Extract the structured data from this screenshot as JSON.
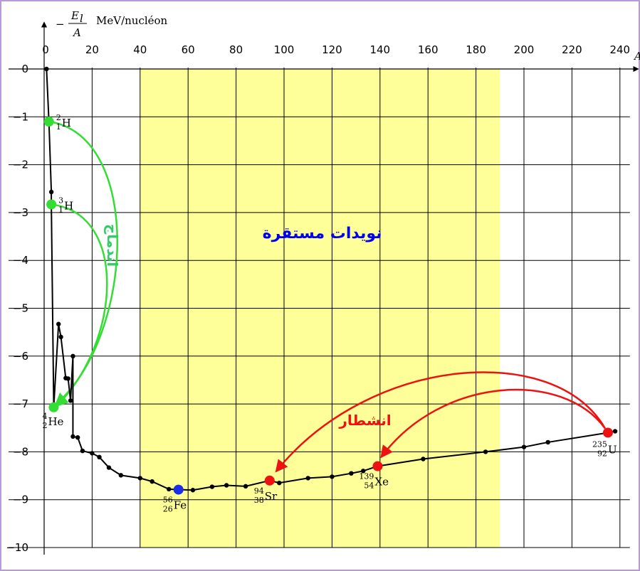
{
  "chart_data": {
    "type": "line",
    "xlabel": "A",
    "ylabel_num": "E",
    "ylabel_sub": "l",
    "ylabel_den": "A",
    "ylabel_minus": "−",
    "units": "MeV/nucléon",
    "xlim": [
      0,
      240
    ],
    "ylim": [
      -10,
      0
    ],
    "xticks": [
      20,
      40,
      60,
      80,
      100,
      120,
      140,
      160,
      180,
      200,
      220,
      240
    ],
    "yticks": [
      0,
      -1,
      -2,
      -3,
      -4,
      -5,
      -6,
      -7,
      -8,
      -9,
      -10
    ],
    "origin_tick_label": "0",
    "stable_region": {
      "x": [
        40,
        190
      ],
      "label": "نويدات مستقرة",
      "color": "#ffff99",
      "label_color": "#0000ee"
    },
    "series": [
      {
        "values_xy": [
          [
            1,
            -0.0
          ],
          [
            2,
            -1.1
          ],
          [
            3,
            -2.57
          ],
          [
            3,
            -2.83
          ],
          [
            4,
            -7.07
          ],
          [
            6,
            -5.33
          ],
          [
            7,
            -5.6
          ],
          [
            9,
            -6.46
          ],
          [
            10,
            -6.47
          ],
          [
            11,
            -6.93
          ],
          [
            12,
            -6.0
          ],
          [
            12,
            -7.68
          ],
          [
            14,
            -7.7
          ],
          [
            16,
            -7.98
          ],
          [
            20,
            -8.03
          ],
          [
            23,
            -8.11
          ],
          [
            27,
            -8.33
          ],
          [
            32,
            -8.49
          ],
          [
            40,
            -8.55
          ],
          [
            45,
            -8.62
          ],
          [
            52,
            -8.78
          ],
          [
            56,
            -8.79
          ],
          [
            62,
            -8.8
          ],
          [
            70,
            -8.73
          ],
          [
            76,
            -8.7
          ],
          [
            84,
            -8.72
          ],
          [
            94,
            -8.6
          ],
          [
            98,
            -8.65
          ],
          [
            110,
            -8.55
          ],
          [
            120,
            -8.52
          ],
          [
            128,
            -8.45
          ],
          [
            133,
            -8.4
          ],
          [
            139,
            -8.3
          ],
          [
            158,
            -8.15
          ],
          [
            184,
            -8.0
          ],
          [
            200,
            -7.9
          ],
          [
            210,
            -7.8
          ],
          [
            235,
            -7.6
          ],
          [
            238,
            -7.57
          ]
        ],
        "color": "#000000"
      }
    ],
    "highlighted_nuclides": [
      {
        "A": 2,
        "E": -1.1,
        "mass": "2",
        "atomic": "1",
        "symbol": "H",
        "color": "#33dd33"
      },
      {
        "A": 3,
        "E": -2.83,
        "mass": "3",
        "atomic": "1",
        "symbol": "H",
        "color": "#33dd33"
      },
      {
        "A": 4,
        "E": -7.07,
        "mass": "4",
        "atomic": "2",
        "symbol": "He",
        "color": "#33dd33"
      },
      {
        "A": 56,
        "E": -8.79,
        "mass": "56",
        "atomic": "26",
        "symbol": "Fe",
        "color": "#1a2ee6"
      },
      {
        "A": 94,
        "E": -8.6,
        "mass": "94",
        "atomic": "38",
        "symbol": "Sr",
        "color": "#ee1111"
      },
      {
        "A": 139,
        "E": -8.3,
        "mass": "139",
        "atomic": "54",
        "symbol": "Xe",
        "color": "#ee1111"
      },
      {
        "A": 235,
        "E": -7.6,
        "mass": "235",
        "atomic": "92",
        "symbol": "U",
        "color": "#ee1111"
      }
    ],
    "annotations": {
      "fusion": {
        "label": "اندماج",
        "color": "#33cc66"
      },
      "fission": {
        "label": "انشطار",
        "color": "#ee1111"
      }
    },
    "grid": true
  }
}
